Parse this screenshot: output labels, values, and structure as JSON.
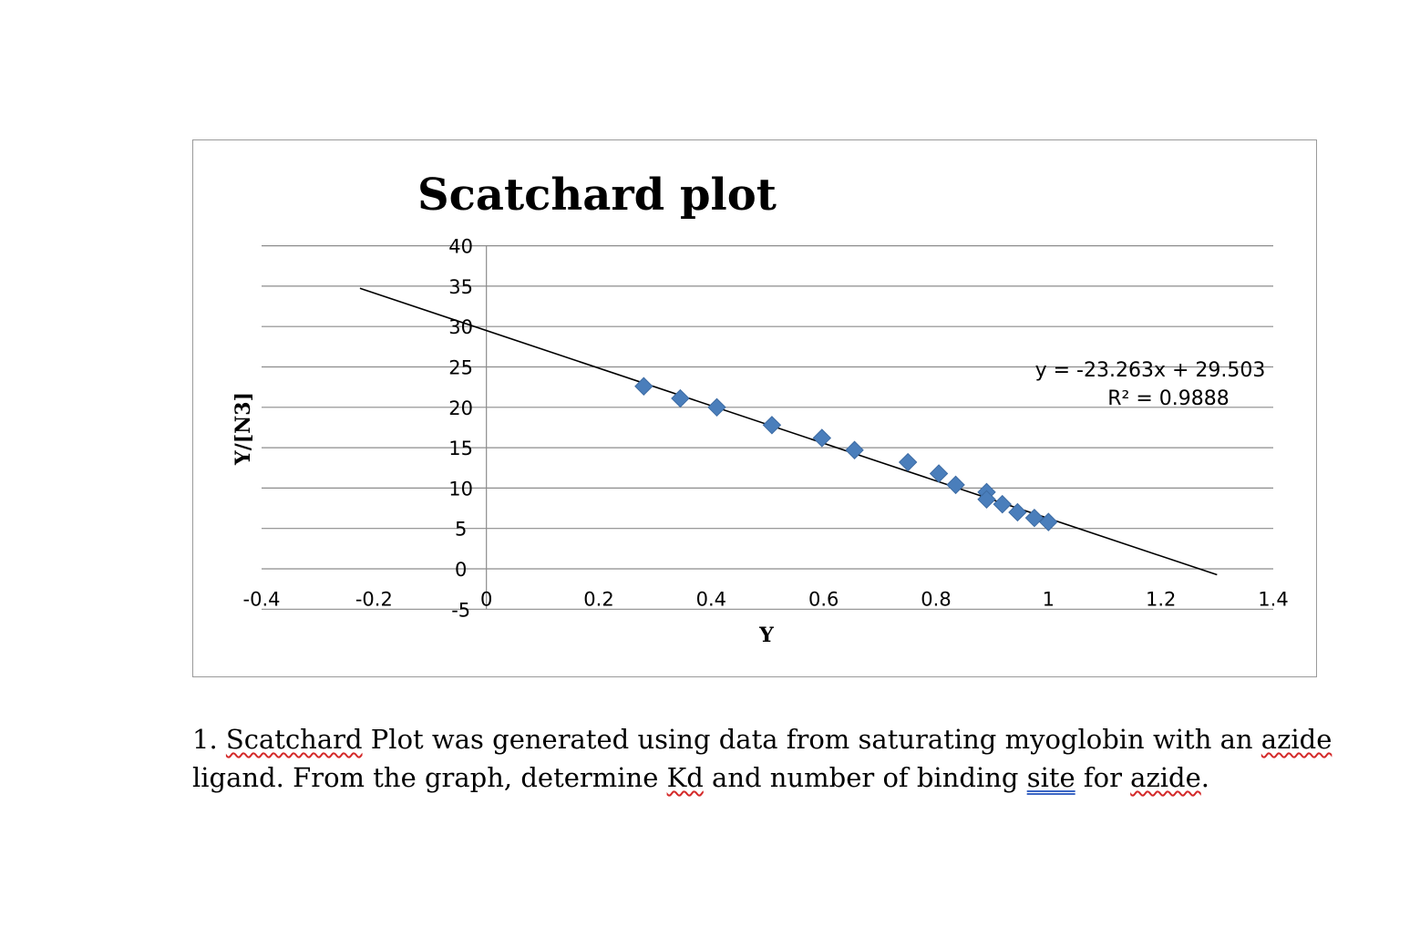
{
  "chart_data": {
    "type": "scatter",
    "title": "Scatchard plot",
    "xlabel": "Y",
    "ylabel": "Y/[N3]",
    "xlim": [
      -0.4,
      1.4
    ],
    "ylim": [
      -5,
      40
    ],
    "x_ticks": [
      -0.4,
      -0.2,
      0,
      0.2,
      0.4,
      0.6,
      0.8,
      1,
      1.2,
      1.4
    ],
    "y_ticks": [
      -5,
      0,
      5,
      10,
      15,
      20,
      25,
      30,
      35,
      40
    ],
    "x_tick_labels": [
      "-0.4",
      "-0.2",
      "0",
      "0.2",
      "0.4",
      "0.6",
      "0.8",
      "1",
      "1.2",
      "1.4"
    ],
    "y_tick_labels": [
      "-5",
      "0",
      "5",
      "10",
      "15",
      "20",
      "25",
      "30",
      "35",
      "40"
    ],
    "grid": "horizontal",
    "marker": "diamond",
    "marker_color": "#4a7ebb",
    "points": [
      {
        "x": 0.28,
        "y": 22.6
      },
      {
        "x": 0.345,
        "y": 21.1
      },
      {
        "x": 0.41,
        "y": 20.0
      },
      {
        "x": 0.508,
        "y": 17.8
      },
      {
        "x": 0.597,
        "y": 16.2
      },
      {
        "x": 0.655,
        "y": 14.7
      },
      {
        "x": 0.75,
        "y": 13.2
      },
      {
        "x": 0.805,
        "y": 11.8
      },
      {
        "x": 0.835,
        "y": 10.4
      },
      {
        "x": 0.89,
        "y": 9.5
      },
      {
        "x": 0.89,
        "y": 8.6
      },
      {
        "x": 0.918,
        "y": 8.0
      },
      {
        "x": 0.945,
        "y": 7.0
      },
      {
        "x": 0.975,
        "y": 6.3
      },
      {
        "x": 1.0,
        "y": 5.8
      }
    ],
    "trendline": {
      "slope": -23.263,
      "intercept": 29.503,
      "x_range": [
        -0.225,
        1.3
      ],
      "equation": "y = -23.263x + 29.503",
      "r_squared": "R² = 0.9888",
      "color": "#000000"
    }
  },
  "question": {
    "number": "1.",
    "parts": [
      {
        "text": "Scatchard",
        "style": "spell"
      },
      {
        "text": " Plot was generated using data from saturating myoglobin with an ",
        "style": ""
      },
      {
        "text": "azide",
        "style": "spell"
      },
      {
        "text": " ligand. From the graph, determine ",
        "style": ""
      },
      {
        "text": "Kd",
        "style": "spell"
      },
      {
        "text": " and number of binding ",
        "style": ""
      },
      {
        "text": "site",
        "style": "grammar"
      },
      {
        "text": " for ",
        "style": ""
      },
      {
        "text": "azide",
        "style": "spell"
      },
      {
        "text": ".",
        "style": ""
      }
    ]
  }
}
